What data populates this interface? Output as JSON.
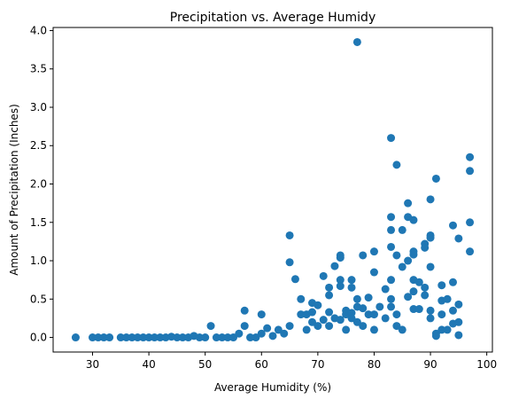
{
  "chart_data": {
    "type": "scatter",
    "title": "Precipitation vs. Average Humidy",
    "xlabel": "Average Humidity (%)",
    "ylabel": "Amount of Precipitation (Inches)",
    "xlim": [
      23,
      101
    ],
    "ylim": [
      -0.19,
      4.04
    ],
    "xticks": [
      30,
      40,
      50,
      60,
      70,
      80,
      90,
      100
    ],
    "xtick_labels": [
      "30",
      "40",
      "50",
      "60",
      "70",
      "80",
      "90",
      "100"
    ],
    "yticks": [
      0.0,
      0.5,
      1.0,
      1.5,
      2.0,
      2.5,
      3.0,
      3.5,
      4.0
    ],
    "ytick_labels": [
      "0.0",
      "0.5",
      "1.0",
      "1.5",
      "2.0",
      "2.5",
      "3.0",
      "3.5",
      "4.0"
    ],
    "grid": false,
    "legend": "none",
    "colors": {
      "point": "#1f77b4",
      "axis": "#000000",
      "background": "#ffffff"
    },
    "series": [
      {
        "points": [
          [
            27,
            0
          ],
          [
            30,
            0
          ],
          [
            31,
            0
          ],
          [
            32,
            0
          ],
          [
            33,
            0
          ],
          [
            35,
            0
          ],
          [
            36,
            0
          ],
          [
            37,
            0
          ],
          [
            38,
            0
          ],
          [
            39,
            0
          ],
          [
            40,
            0
          ],
          [
            41,
            0
          ],
          [
            42,
            0
          ],
          [
            43,
            0
          ],
          [
            44,
            0.01
          ],
          [
            45,
            0
          ],
          [
            46,
            0
          ],
          [
            47,
            0
          ],
          [
            48,
            0.02
          ],
          [
            49,
            0
          ],
          [
            50,
            0
          ],
          [
            51,
            0.15
          ],
          [
            52,
            0
          ],
          [
            53,
            0
          ],
          [
            54,
            0
          ],
          [
            55,
            0
          ],
          [
            56,
            0.05
          ],
          [
            57,
            0.35
          ],
          [
            57,
            0.15
          ],
          [
            58,
            0
          ],
          [
            59,
            0
          ],
          [
            60,
            0.3
          ],
          [
            60,
            0.05
          ],
          [
            61,
            0.12
          ],
          [
            62,
            0.02
          ],
          [
            63,
            0.1
          ],
          [
            64,
            0.05
          ],
          [
            65,
            1.33
          ],
          [
            65,
            0.98
          ],
          [
            65,
            0.15
          ],
          [
            66,
            0.76
          ],
          [
            67,
            0.5
          ],
          [
            67,
            0.3
          ],
          [
            68,
            0.3
          ],
          [
            68,
            0.1
          ],
          [
            69,
            0.45
          ],
          [
            69,
            0.33
          ],
          [
            69,
            0.2
          ],
          [
            70,
            0.42
          ],
          [
            70,
            0.15
          ],
          [
            71,
            0.8
          ],
          [
            71,
            0.23
          ],
          [
            72,
            0.65
          ],
          [
            72,
            0.55
          ],
          [
            72,
            0.33
          ],
          [
            72,
            0.15
          ],
          [
            73,
            0.93
          ],
          [
            73,
            0.25
          ],
          [
            74,
            1.07
          ],
          [
            74,
            1.04
          ],
          [
            74,
            0.75
          ],
          [
            74,
            0.67
          ],
          [
            74,
            0.23
          ],
          [
            75,
            0.35
          ],
          [
            75,
            0.3
          ],
          [
            75,
            0.1
          ],
          [
            76,
            0.75
          ],
          [
            76,
            0.65
          ],
          [
            76,
            0.32
          ],
          [
            76,
            0.25
          ],
          [
            77,
            3.85
          ],
          [
            77,
            0.5
          ],
          [
            77,
            0.4
          ],
          [
            77,
            0.2
          ],
          [
            78,
            1.07
          ],
          [
            78,
            0.38
          ],
          [
            78,
            0.15
          ],
          [
            79,
            0.52
          ],
          [
            79,
            0.3
          ],
          [
            80,
            1.12
          ],
          [
            80,
            0.85
          ],
          [
            80,
            0.3
          ],
          [
            80,
            0.1
          ],
          [
            81,
            0.4
          ],
          [
            82,
            0.63
          ],
          [
            82,
            0.25
          ],
          [
            83,
            2.6
          ],
          [
            83,
            1.57
          ],
          [
            83,
            1.4
          ],
          [
            83,
            1.18
          ],
          [
            83,
            0.75
          ],
          [
            83,
            0.5
          ],
          [
            83,
            0.4
          ],
          [
            84,
            2.25
          ],
          [
            84,
            1.07
          ],
          [
            84,
            0.3
          ],
          [
            84,
            0.15
          ],
          [
            85,
            1.4
          ],
          [
            85,
            0.92
          ],
          [
            85,
            0.1
          ],
          [
            86,
            1.75
          ],
          [
            86,
            1.57
          ],
          [
            86,
            1.0
          ],
          [
            86,
            0.53
          ],
          [
            87,
            1.53
          ],
          [
            87,
            1.12
          ],
          [
            87,
            1.08
          ],
          [
            87,
            0.75
          ],
          [
            87,
            0.6
          ],
          [
            87,
            0.37
          ],
          [
            88,
            0.72
          ],
          [
            88,
            0.37
          ],
          [
            89,
            1.22
          ],
          [
            89,
            1.17
          ],
          [
            89,
            0.65
          ],
          [
            89,
            0.55
          ],
          [
            90,
            1.8
          ],
          [
            90,
            1.33
          ],
          [
            90,
            1.3
          ],
          [
            90,
            0.92
          ],
          [
            90,
            0.35
          ],
          [
            90,
            0.25
          ],
          [
            91,
            2.07
          ],
          [
            91,
            0.05
          ],
          [
            91,
            0.02
          ],
          [
            92,
            0.68
          ],
          [
            92,
            0.48
          ],
          [
            92,
            0.3
          ],
          [
            92,
            0.1
          ],
          [
            93,
            0.5
          ],
          [
            93,
            0.1
          ],
          [
            94,
            1.46
          ],
          [
            94,
            0.72
          ],
          [
            94,
            0.35
          ],
          [
            94,
            0.18
          ],
          [
            95,
            1.29
          ],
          [
            95,
            0.43
          ],
          [
            95,
            0.2
          ],
          [
            95,
            0.03
          ],
          [
            97,
            2.35
          ],
          [
            97,
            2.17
          ],
          [
            97,
            1.5
          ],
          [
            97,
            1.12
          ]
        ]
      }
    ]
  }
}
